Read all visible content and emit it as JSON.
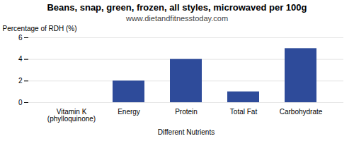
{
  "chart_data": {
    "type": "bar",
    "title": "Beans, snap, green, frozen, all styles, microwaved per 100g",
    "subtitle": "www.dietandfitnesstoday.com",
    "xlabel": "Different Nutrients",
    "ylabel": "Percentage of RDH (%)",
    "categories": [
      "Vitamin K (phylloquinone)",
      "Energy",
      "Protein",
      "Total Fat",
      "Carbohydrate"
    ],
    "values": [
      0,
      2,
      4,
      1,
      5
    ],
    "color": "#2e4b9a",
    "ylim": [
      0,
      6
    ],
    "yticks": [
      0,
      2,
      4,
      6
    ],
    "grid": true
  }
}
